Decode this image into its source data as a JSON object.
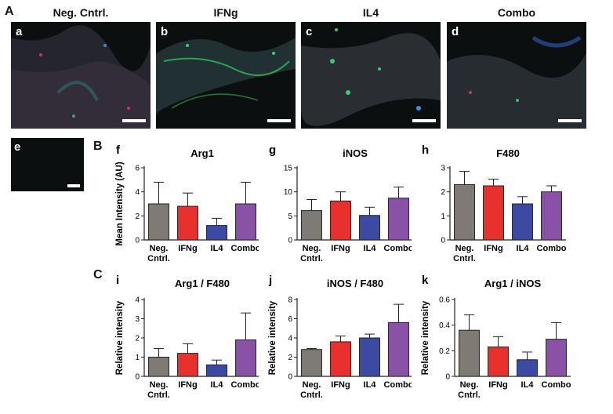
{
  "sections": {
    "a": "A",
    "b": "B",
    "c": "C"
  },
  "panels": [
    {
      "letter": "a",
      "title": "Neg. Cntrl."
    },
    {
      "letter": "b",
      "title": "IFNg"
    },
    {
      "letter": "c",
      "title": "IL4"
    },
    {
      "letter": "d",
      "title": "Combo"
    }
  ],
  "control_panel": {
    "letter": "e"
  },
  "colors": {
    "neg": "#7f7a73",
    "ifng": "#e8312d",
    "il4": "#3d4aa3",
    "combo": "#8a52a6"
  },
  "chart_data": [
    {
      "id": "f",
      "type": "bar",
      "title": "Arg1",
      "ylabel": "Mean Intensity (AU)",
      "categories": [
        "Neg. Cntrl.",
        "IFNg",
        "IL4",
        "Combo"
      ],
      "values": [
        3.0,
        2.8,
        1.2,
        3.0
      ],
      "errors": [
        1.8,
        1.1,
        0.6,
        1.8
      ],
      "ylim": [
        0,
        6
      ],
      "yticks": [
        0,
        2,
        4,
        6
      ]
    },
    {
      "id": "g",
      "type": "bar",
      "title": "iNOS",
      "ylabel": "",
      "categories": [
        "Neg. Cntrl.",
        "IFNg",
        "IL4",
        "Combo"
      ],
      "values": [
        6.1,
        8.1,
        5.1,
        8.7
      ],
      "errors": [
        2.3,
        1.9,
        1.7,
        2.3
      ],
      "ylim": [
        0,
        15
      ],
      "yticks": [
        0,
        5,
        10,
        15
      ]
    },
    {
      "id": "h",
      "type": "bar",
      "title": "F480",
      "ylabel": "",
      "categories": [
        "Neg. Cntrl.",
        "IFNg",
        "IL4",
        "Combo"
      ],
      "values": [
        2.3,
        2.25,
        1.5,
        2.0
      ],
      "errors": [
        0.55,
        0.28,
        0.3,
        0.25
      ],
      "ylim": [
        0,
        3
      ],
      "yticks": [
        0,
        1,
        2,
        3
      ]
    },
    {
      "id": "i",
      "type": "bar",
      "title": "Arg1 / F480",
      "ylabel": "Relative intensity",
      "categories": [
        "Neg. Cntrl.",
        "IFNg",
        "IL4",
        "Combo"
      ],
      "values": [
        1.0,
        1.2,
        0.6,
        1.9
      ],
      "errors": [
        0.45,
        0.5,
        0.25,
        1.4
      ],
      "ylim": [
        0,
        4
      ],
      "yticks": [
        0,
        1,
        2,
        3,
        4
      ]
    },
    {
      "id": "j",
      "type": "bar",
      "title": "iNOS / F480",
      "ylabel": "Relative intensity",
      "categories": [
        "Neg. Cntrl.",
        "IFNg",
        "IL4",
        "Combo"
      ],
      "values": [
        2.8,
        3.6,
        4.0,
        5.6
      ],
      "errors": [
        0.1,
        0.6,
        0.4,
        1.9
      ],
      "ylim": [
        0,
        8
      ],
      "yticks": [
        0,
        2,
        4,
        6,
        8
      ]
    },
    {
      "id": "k",
      "type": "bar",
      "title": "Arg1 / iNOS",
      "ylabel": "Relative intensity",
      "categories": [
        "Neg. Cntrl.",
        "IFNg",
        "IL4",
        "Combo"
      ],
      "values": [
        0.36,
        0.23,
        0.13,
        0.29
      ],
      "errors": [
        0.12,
        0.08,
        0.06,
        0.13
      ],
      "ylim": [
        0,
        0.6
      ],
      "yticks": [
        0,
        0.2,
        0.4,
        0.6
      ]
    }
  ]
}
